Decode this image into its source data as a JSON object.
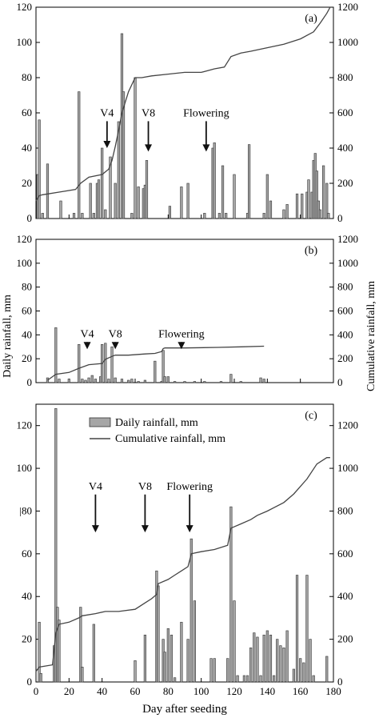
{
  "chart_data": [
    {
      "type": "bar",
      "panel_label": "(a)",
      "xlim": [
        0,
        180
      ],
      "ylim_left": [
        0,
        120
      ],
      "ylim_right": [
        0,
        1200
      ],
      "y_ticks_left": [
        "0",
        "20",
        "40",
        "60",
        "80",
        "100",
        "120"
      ],
      "y_ticks_right": [
        "0",
        "200",
        "400",
        "600",
        "800",
        "1000",
        "1200"
      ],
      "grid": false,
      "series": [
        {
          "name": "Daily rainfall, mm",
          "kind": "bar",
          "axis": "left",
          "x": [
            1,
            2,
            4,
            7,
            15,
            23,
            26,
            28,
            33,
            35,
            37,
            38,
            40,
            42,
            45,
            48,
            50,
            52,
            53,
            58,
            60,
            62,
            65,
            66,
            67,
            81,
            88,
            92,
            102,
            107,
            108,
            111,
            113,
            115,
            120,
            128,
            129,
            138,
            140,
            142,
            150,
            152,
            158,
            161,
            164,
            165,
            167,
            168,
            169,
            170,
            171,
            172,
            174,
            176,
            177
          ],
          "values": [
            25,
            56,
            3,
            31,
            10,
            3,
            72,
            3,
            20,
            3,
            20,
            22,
            40,
            5,
            35,
            20,
            55,
            105,
            72,
            3,
            80,
            18,
            17,
            19,
            33,
            7,
            18,
            20,
            3,
            40,
            43,
            3,
            30,
            3,
            25,
            3,
            42,
            3,
            25,
            10,
            5,
            8,
            14,
            14,
            15,
            22,
            15,
            33,
            37,
            27,
            10,
            5,
            30,
            20,
            3
          ]
        },
        {
          "name": "Cumulative rainfall, mm",
          "kind": "line",
          "axis": "right",
          "x": [
            0,
            2,
            4,
            14,
            24,
            27,
            32,
            40,
            44,
            46,
            48,
            50,
            52,
            56,
            60,
            64,
            70,
            80,
            90,
            100,
            104,
            108,
            114,
            118,
            124,
            130,
            140,
            150,
            160,
            168,
            172,
            176,
            178
          ],
          "values": [
            100,
            130,
            135,
            150,
            165,
            200,
            235,
            250,
            280,
            330,
            410,
            500,
            600,
            720,
            800,
            800,
            810,
            820,
            830,
            830,
            840,
            850,
            860,
            920,
            940,
            950,
            970,
            990,
            1020,
            1060,
            1110,
            1165,
            1200
          ]
        }
      ],
      "annotations": [
        {
          "label": "V4",
          "x": 43,
          "y": 58,
          "y_arrow_end": 40
        },
        {
          "label": "V8",
          "x": 68,
          "y": 58,
          "y_arrow_end": 38
        },
        {
          "label": "Flowering",
          "x": 103,
          "y": 58,
          "y_arrow_end": 38
        }
      ]
    },
    {
      "type": "bar",
      "panel_label": "(b)",
      "xlim": [
        0,
        180
      ],
      "ylim_left": [
        0,
        120
      ],
      "ylim_right": [
        0,
        1200
      ],
      "y_ticks_left": [
        "0",
        "20",
        "40",
        "60",
        "80",
        "100",
        "120"
      ],
      "y_ticks_right": [
        "0",
        "200",
        "400",
        "600",
        "800",
        "1000",
        "1200"
      ],
      "grid": false,
      "series": [
        {
          "name": "Daily rainfall, mm",
          "kind": "bar",
          "axis": "left",
          "x": [
            7,
            12,
            14,
            20,
            26,
            28,
            30,
            32,
            34,
            36,
            39,
            40,
            42,
            44,
            46,
            48,
            52,
            56,
            58,
            62,
            66,
            72,
            76,
            77,
            78,
            80,
            84,
            90,
            96,
            102,
            112,
            118,
            124,
            136,
            138
          ],
          "values": [
            4,
            46,
            3,
            3,
            32,
            3,
            2,
            4,
            6,
            3,
            5,
            32,
            33,
            3,
            30,
            4,
            3,
            2,
            3,
            1,
            2,
            18,
            1,
            27,
            5,
            5,
            1,
            1,
            1,
            1,
            1,
            7,
            1,
            4,
            3
          ]
        },
        {
          "name": "Cumulative rainfall, mm",
          "kind": "line",
          "axis": "right",
          "x": [
            7,
            12,
            20,
            26,
            32,
            40,
            42,
            46,
            48,
            56,
            66,
            72,
            76,
            77,
            78,
            90,
            110,
            124,
            138
          ],
          "values": [
            20,
            70,
            85,
            120,
            150,
            160,
            195,
            220,
            230,
            230,
            240,
            245,
            260,
            285,
            290,
            290,
            295,
            300,
            305
          ]
        }
      ],
      "annotations": [
        {
          "label": "V4",
          "x": 31,
          "y": 38,
          "y_arrow_end": 28
        },
        {
          "label": "V8",
          "x": 48,
          "y": 38,
          "y_arrow_end": 28
        },
        {
          "label": "Flowering",
          "x": 88,
          "y": 38,
          "y_arrow_end": 28
        }
      ]
    },
    {
      "type": "bar",
      "panel_label": "(c)",
      "xlim": [
        0,
        180
      ],
      "ylim_left": [
        0,
        130
      ],
      "ylim_right": [
        0,
        1300
      ],
      "y_ticks_left": [
        "0",
        "20",
        "40",
        "60",
        "|80",
        "100",
        "120"
      ],
      "y_ticks_right": [
        "0",
        "200",
        "400",
        "600",
        "800",
        "1000",
        "1200"
      ],
      "x_ticks": [
        "0",
        "20",
        "40",
        "60",
        "80",
        "100",
        "120",
        "140",
        "160",
        "180"
      ],
      "xlabel": "Day after seeding",
      "grid": false,
      "series": [
        {
          "name": "Daily rainfall, mm",
          "kind": "bar",
          "axis": "left",
          "x": [
            2,
            3,
            11,
            12,
            13,
            14,
            27,
            28,
            35,
            60,
            66,
            73,
            74,
            77,
            78,
            80,
            82,
            84,
            88,
            92,
            94,
            96,
            106,
            108,
            116,
            118,
            120,
            122,
            126,
            128,
            130,
            132,
            134,
            136,
            138,
            140,
            142,
            144,
            146,
            148,
            150,
            152,
            156,
            158,
            160,
            162,
            164,
            166,
            168,
            176
          ],
          "values": [
            28,
            4,
            17,
            128,
            35,
            29,
            35,
            7,
            27,
            10,
            22,
            52,
            45,
            20,
            14,
            25,
            22,
            2,
            28,
            20,
            67,
            38,
            11,
            11,
            11,
            82,
            38,
            3,
            3,
            3,
            16,
            23,
            21,
            3,
            22,
            24,
            22,
            3,
            20,
            17,
            16,
            24,
            6,
            50,
            11,
            9,
            50,
            20,
            3,
            12
          ]
        },
        {
          "name": "Cumulative rainfall, mm",
          "kind": "line",
          "axis": "right",
          "x": [
            0,
            2,
            10,
            12,
            14,
            20,
            26,
            28,
            36,
            42,
            50,
            60,
            66,
            70,
            73,
            74,
            80,
            84,
            88,
            92,
            94,
            100,
            108,
            116,
            118,
            124,
            130,
            134,
            140,
            150,
            156,
            164,
            170,
            176,
            178
          ],
          "values": [
            50,
            70,
            80,
            230,
            270,
            280,
            300,
            310,
            320,
            330,
            330,
            340,
            370,
            390,
            410,
            460,
            480,
            500,
            520,
            540,
            600,
            610,
            620,
            640,
            720,
            740,
            760,
            780,
            800,
            840,
            880,
            950,
            1020,
            1050,
            1050
          ]
        }
      ],
      "annotations": [
        {
          "label": "V4",
          "x": 36,
          "y": 90,
          "y_arrow_end": 70
        },
        {
          "label": "V8",
          "x": 66,
          "y": 90,
          "y_arrow_end": 70
        },
        {
          "label": "Flowering",
          "x": 93,
          "y": 90,
          "y_arrow_end": 70
        }
      ],
      "legend": {
        "placement": "top-center",
        "entries": [
          "Daily rainfall, mm",
          "Cumulative rainfall, mm"
        ]
      }
    }
  ],
  "axes_labels": {
    "left": "Daily rainfall, mm",
    "right": "Cumulative rainfall, mm"
  },
  "colors": {
    "bar_fill": "#a6a6a6",
    "bar_stroke": "#333333",
    "line": "#444444",
    "axis": "#000000"
  }
}
